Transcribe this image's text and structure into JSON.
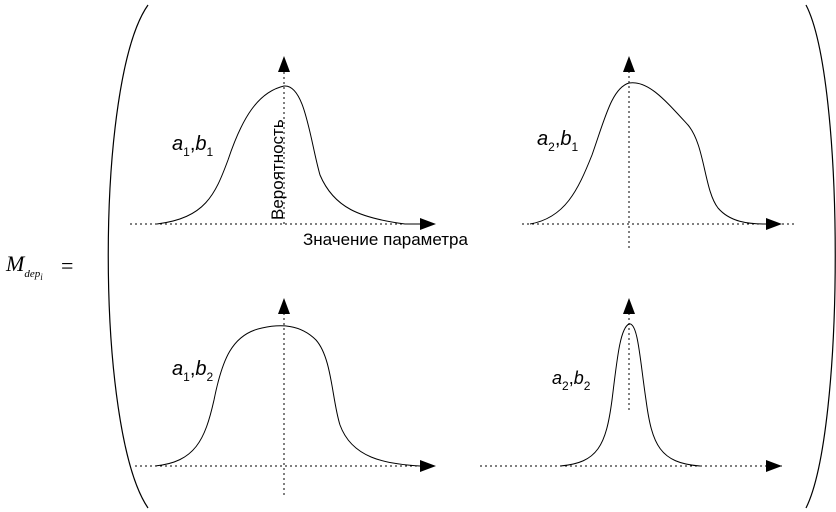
{
  "matrix_label": {
    "base": "M",
    "subscript": "dep",
    "sub_subscript": "i",
    "equals": "="
  },
  "axis_labels": {
    "y": "Вероятность",
    "x": "Значение параметра"
  },
  "cells": [
    {
      "a": "a",
      "a_sub": "1",
      "b": "b",
      "b_sub": "1"
    },
    {
      "a": "a",
      "a_sub": "2",
      "b": "b",
      "b_sub": "1"
    },
    {
      "a": "a",
      "a_sub": "1",
      "b": "b",
      "b_sub": "2"
    },
    {
      "a": "a",
      "a_sub": "2",
      "b": "b",
      "b_sub": "2"
    }
  ]
}
